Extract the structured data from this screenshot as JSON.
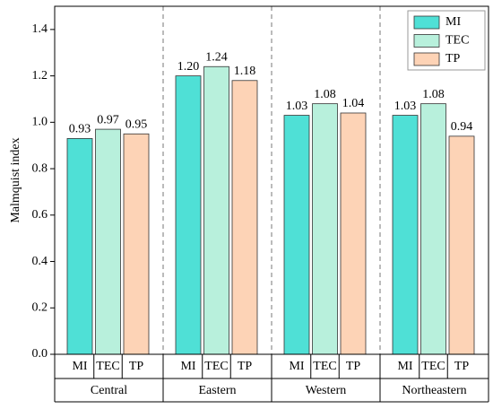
{
  "chart_data": {
    "type": "bar",
    "y_label": "Malmquist index",
    "categories": [
      "Central",
      "Eastern",
      "Western",
      "Northeastern"
    ],
    "series": [
      {
        "name": "MI",
        "color": "#4fe0d6",
        "values": [
          0.93,
          1.2,
          1.03,
          1.03
        ],
        "value_labels": [
          "0.93",
          "1.20",
          "1.03",
          "1.03"
        ]
      },
      {
        "name": "TEC",
        "color": "#b8f0dc",
        "values": [
          0.97,
          1.24,
          1.08,
          1.08
        ],
        "value_labels": [
          "0.97",
          "1.24",
          "1.08",
          "1.08"
        ]
      },
      {
        "name": "TP",
        "color": "#fdd3b6",
        "values": [
          0.95,
          1.18,
          1.04,
          0.94
        ],
        "value_labels": [
          "0.95",
          "1.18",
          "1.04",
          "0.94"
        ]
      }
    ],
    "ylim": [
      0,
      1.5
    ],
    "yticks": [
      {
        "value": 0,
        "label": "0.0"
      },
      0.2,
      0.4,
      0.6,
      0.8,
      {
        "value": 1,
        "label": "1.0"
      },
      1.2,
      1.4
    ],
    "legend": "upper right"
  }
}
